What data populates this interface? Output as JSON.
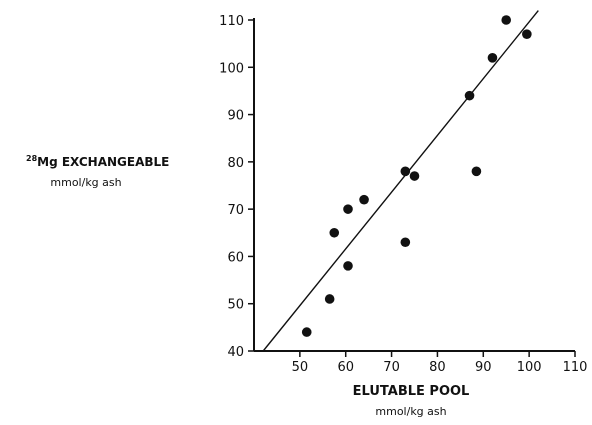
{
  "chart_data": {
    "type": "scatter",
    "xlabel": "ELUTABLE POOL",
    "xunit": "mmol/kg ash",
    "ylabel_superscript": "28",
    "ylabel_main": "Mg EXCHANGEABLE",
    "yunit": "mmol/kg ash",
    "xlim": [
      40,
      110
    ],
    "ylim": [
      40,
      110
    ],
    "xticks": [
      50,
      60,
      70,
      80,
      90,
      100,
      110
    ],
    "yticks": [
      40,
      50,
      60,
      70,
      80,
      90,
      100,
      110
    ],
    "grid": false,
    "points": [
      {
        "x": 51.5,
        "y": 44
      },
      {
        "x": 56.5,
        "y": 51
      },
      {
        "x": 57.5,
        "y": 65
      },
      {
        "x": 60.5,
        "y": 58
      },
      {
        "x": 60.5,
        "y": 70
      },
      {
        "x": 64,
        "y": 72
      },
      {
        "x": 73,
        "y": 78
      },
      {
        "x": 73,
        "y": 63
      },
      {
        "x": 75,
        "y": 77
      },
      {
        "x": 87,
        "y": 94
      },
      {
        "x": 88.5,
        "y": 78
      },
      {
        "x": 92,
        "y": 102
      },
      {
        "x": 95,
        "y": 110
      },
      {
        "x": 99.5,
        "y": 107
      }
    ],
    "trendline": {
      "x": [
        42,
        102
      ],
      "y": [
        40,
        112
      ]
    }
  }
}
